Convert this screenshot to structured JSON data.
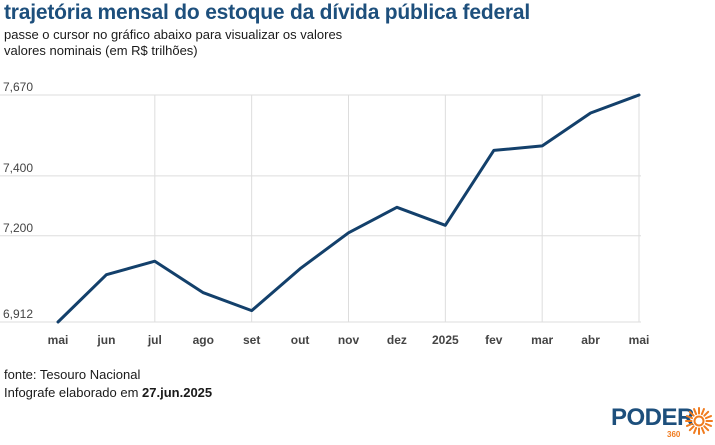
{
  "header": {
    "title": "trajetória mensal do estoque da dívida pública federal",
    "subtitle_line1": "passe o cursor no gráfico abaixo para visualizar os valores",
    "subtitle_line2": "valores nominais (em R$ trilhões)"
  },
  "footer": {
    "source": "fonte: Tesouro Nacional",
    "credit_prefix": "Infografe elaborado em ",
    "credit_date": "27.jun.2025"
  },
  "logo": {
    "text": "PODER",
    "sub": "360",
    "icon": "sun-burst-icon",
    "color": "#f07b1e"
  },
  "chart_data": {
    "type": "line",
    "categories": [
      "mai",
      "jun",
      "jul",
      "ago",
      "set",
      "out",
      "nov",
      "dez",
      "2025",
      "fev",
      "mar",
      "abr",
      "mai"
    ],
    "series": [
      {
        "values": [
          6.912,
          7.07,
          7.115,
          7.01,
          6.95,
          7.09,
          7.21,
          7.295,
          7.235,
          7.485,
          7.5,
          7.61,
          7.67
        ],
        "color": "#13406b"
      }
    ],
    "y_ticks": [
      6.912,
      7.2,
      7.4,
      7.67
    ],
    "y_tick_labels": [
      "6,912",
      "7,200",
      "7,400",
      "7,670"
    ],
    "ylim": [
      6.912,
      7.67
    ],
    "grid": true,
    "gridline_color": "#dddddd"
  }
}
